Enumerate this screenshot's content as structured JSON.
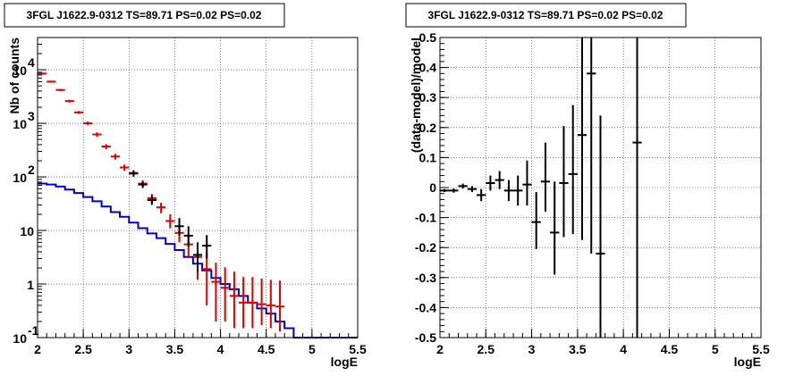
{
  "chart_data": [
    {
      "type": "line",
      "title": "3FGL J1622.9-0312 TS=89.71 PS=0.02 PS=0.02",
      "xlabel": "logE",
      "ylabel": "Nb of counts",
      "xlim": [
        2,
        5.5
      ],
      "ylim": [
        0.1,
        40000
      ],
      "y_scale": "log",
      "grid": true,
      "x_ticks": [
        "2",
        "2.5",
        "3",
        "3.5",
        "4",
        "4.5",
        "5",
        "5.5"
      ],
      "y_ticks": [
        {
          "value": 0.1,
          "base": "10",
          "exp": "-1"
        },
        {
          "value": 1,
          "base": "1",
          "exp": ""
        },
        {
          "value": 10,
          "base": "10",
          "exp": ""
        },
        {
          "value": 100,
          "base": "10",
          "exp": "2"
        },
        {
          "value": 1000,
          "base": "10",
          "exp": "3"
        },
        {
          "value": 10000,
          "base": "10",
          "exp": "4"
        }
      ],
      "bin_edges": [
        2.0,
        2.1,
        2.2,
        2.3,
        2.4,
        2.5,
        2.6,
        2.7,
        2.8,
        2.9,
        3.0,
        3.1,
        3.2,
        3.3,
        3.4,
        3.5,
        3.6,
        3.7,
        3.8,
        3.9,
        4.0,
        4.1,
        4.2,
        4.3,
        4.4,
        4.5,
        4.6,
        4.7,
        4.8,
        4.9,
        5.0,
        5.1,
        5.2,
        5.3,
        5.4,
        5.5
      ],
      "series": [
        {
          "name": "",
          "kind": "step",
          "color": "#0000cc",
          "values": [
            75,
            72,
            66,
            58,
            50,
            42,
            35,
            28,
            22,
            18,
            14,
            11,
            8.8,
            7.2,
            5.6,
            4.3,
            3.2,
            2.4,
            1.8,
            1.3,
            1.0,
            0.8,
            0.6,
            0.45,
            0.35,
            0.28,
            0.2,
            0.15,
            0.1,
            0.1,
            0.1,
            0.1,
            0.1,
            0.1,
            0.1
          ]
        },
        {
          "name": "",
          "kind": "points",
          "color": "#dd0000",
          "x": [
            2.05,
            2.15,
            2.25,
            2.35,
            2.45,
            2.55,
            2.65,
            2.75,
            2.85,
            2.95,
            3.05,
            3.15,
            3.25,
            3.35,
            3.45,
            3.55,
            3.65,
            3.75,
            3.85,
            3.95,
            4.05,
            4.15,
            4.25,
            4.35,
            4.45,
            4.55,
            4.65
          ],
          "y": [
            8500,
            6000,
            4200,
            2600,
            1600,
            1000,
            620,
            370,
            240,
            150,
            115,
            75,
            40,
            27,
            15,
            9,
            5.5,
            3.2,
            1.9,
            1.1,
            0.85,
            0.6,
            0.45,
            0.45,
            0.42,
            0.4,
            0.38
          ],
          "yerr_low": [
            300,
            250,
            200,
            150,
            100,
            80,
            60,
            40,
            30,
            20,
            15,
            12,
            8,
            6,
            4,
            3,
            2.2,
            2.0,
            1.5,
            0.9,
            0.65,
            0.45,
            0.3,
            0.3,
            0.25,
            0.25,
            0.25
          ],
          "yerr_high": [
            300,
            250,
            200,
            150,
            100,
            80,
            60,
            40,
            30,
            20,
            15,
            12,
            8,
            6,
            5,
            4,
            3,
            2.5,
            2.0,
            1.4,
            1.2,
            1.1,
            0.9,
            0.9,
            0.85,
            0.8,
            0.78
          ]
        },
        {
          "name": "",
          "kind": "points",
          "color": "#000000",
          "x": [
            3.05,
            3.15,
            3.25,
            3.55,
            3.65,
            3.75,
            3.85
          ],
          "y": [
            118,
            72,
            37,
            12,
            8,
            3.5,
            5.2
          ],
          "yerr_low": [
            15,
            10,
            7,
            4,
            3,
            1.8,
            2.2
          ],
          "yerr_high": [
            15,
            10,
            7,
            5,
            4,
            2.5,
            3.0
          ]
        }
      ]
    },
    {
      "type": "scatter",
      "title": "3FGL J1622.9-0312 TS=89.71 PS=0.02 PS=0.02",
      "xlabel": "logE",
      "ylabel": "(data-model)/model",
      "xlim": [
        2,
        5.5
      ],
      "ylim": [
        -0.5,
        0.5
      ],
      "grid": true,
      "x_ticks": [
        "2",
        "2.5",
        "3",
        "3.5",
        "4",
        "4.5",
        "5",
        "5.5"
      ],
      "y_ticks": [
        "-0.5",
        "-0.4",
        "-0.3",
        "-0.2",
        "-0.1",
        "0",
        "0.1",
        "0.2",
        "0.3",
        "0.4",
        "0.5"
      ],
      "series": [
        {
          "name": "",
          "color": "#000000",
          "x": [
            2.05,
            2.15,
            2.25,
            2.35,
            2.45,
            2.55,
            2.65,
            2.75,
            2.85,
            2.95,
            3.05,
            3.15,
            3.25,
            3.35,
            3.45,
            3.55,
            3.65,
            3.75,
            4.15
          ],
          "y": [
            -0.01,
            -0.01,
            0.005,
            -0.005,
            -0.025,
            0.015,
            0.025,
            -0.01,
            -0.01,
            0.01,
            -0.115,
            0.02,
            -0.15,
            0.015,
            0.045,
            0.175,
            0.38,
            -0.22,
            0.15
          ],
          "yerr_low": [
            0.005,
            0.007,
            0.008,
            0.01,
            0.02,
            0.025,
            0.03,
            0.035,
            0.05,
            0.07,
            0.09,
            0.1,
            0.14,
            0.18,
            0.2,
            0.35,
            0.6,
            0.4,
            0.8
          ],
          "yerr_high": [
            0.005,
            0.007,
            0.008,
            0.01,
            0.02,
            0.025,
            0.03,
            0.035,
            0.05,
            0.08,
            0.1,
            0.13,
            0.17,
            0.19,
            0.23,
            0.4,
            0.6,
            0.46,
            0.8
          ]
        }
      ]
    }
  ]
}
